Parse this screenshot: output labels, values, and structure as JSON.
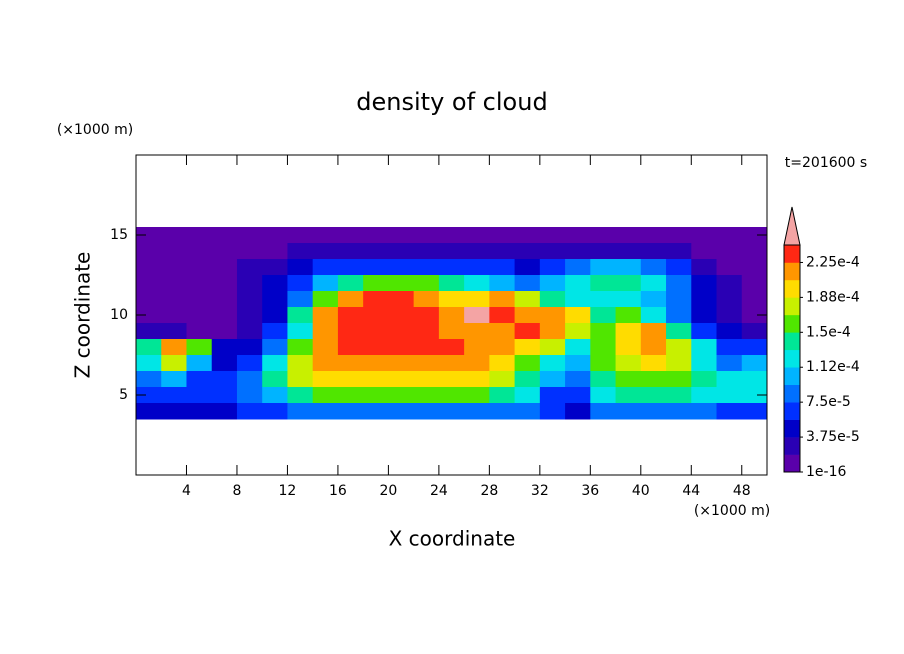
{
  "chart_data": {
    "type": "contour",
    "title": "density of cloud",
    "x_label": "X coordinate",
    "y_label": "Z coordinate",
    "x_unit": "(×1000 m)",
    "y_unit": "(×1000 m)",
    "annotation": "t=201600 s",
    "xlim": [
      0,
      50
    ],
    "xticks": [
      4,
      8,
      12,
      16,
      20,
      24,
      28,
      32,
      36,
      40,
      44,
      48
    ],
    "ylim": [
      0,
      20
    ],
    "yticks": [
      5,
      10,
      15
    ],
    "levels": [
      1e-16,
      1.875e-05,
      3.75e-05,
      5.625e-05,
      7.5e-05,
      9.375e-05,
      0.0001125,
      0.00013125,
      0.00015,
      0.00016875,
      0.0001875,
      0.00020625,
      0.000225,
      0.00024375
    ],
    "level_ticks": [
      {
        "value": 1e-16,
        "label": "1e-16"
      },
      {
        "value": 3.75e-05,
        "label": "3.75e-5"
      },
      {
        "value": 7.5e-05,
        "label": "7.5e-5"
      },
      {
        "value": 0.0001125,
        "label": "1.12e-4"
      },
      {
        "value": 0.00015,
        "label": "1.5e-4"
      },
      {
        "value": 0.0001875,
        "label": "1.88e-4"
      },
      {
        "value": 0.000225,
        "label": "2.25e-4"
      }
    ],
    "colors": [
      "#5a00aa",
      "#2a00b4",
      "#0000c8",
      "#0030ff",
      "#0070ff",
      "#00b4ff",
      "#00e6e6",
      "#00e696",
      "#50e600",
      "#c8f000",
      "#ffdc00",
      "#ff9600",
      "#ff2814"
    ],
    "over_color": "#f4a4a4",
    "field": {
      "x": [
        1,
        3,
        5,
        7,
        9,
        11,
        13,
        15,
        17,
        19,
        21,
        23,
        25,
        27,
        29,
        31,
        33,
        35,
        37,
        39,
        41,
        43,
        45,
        47,
        49
      ],
      "y": [
        15,
        14,
        13,
        12,
        11,
        10,
        9,
        8,
        7,
        6,
        5,
        4
      ],
      "values": [
        [
          9e-06,
          9e-06,
          9e-06,
          9e-06,
          9e-06,
          9e-06,
          9e-06,
          9e-06,
          9e-06,
          9e-06,
          9e-06,
          9e-06,
          9e-06,
          9e-06,
          9e-06,
          9e-06,
          9e-06,
          9e-06,
          9e-06,
          9e-06,
          9e-06,
          9e-06,
          9e-06,
          9e-06,
          9e-06
        ],
        [
          9e-06,
          9e-06,
          9e-06,
          9e-06,
          9e-06,
          9e-06,
          2.8e-05,
          2.8e-05,
          2.8e-05,
          2.8e-05,
          2.8e-05,
          2.8e-05,
          2.8e-05,
          2.8e-05,
          2.8e-05,
          2.8e-05,
          2.8e-05,
          2.8e-05,
          2.8e-05,
          2.8e-05,
          2.8e-05,
          2.8e-05,
          9e-06,
          9e-06,
          9e-06
        ],
        [
          9e-06,
          9e-06,
          9e-06,
          9e-06,
          2.8e-05,
          2.8e-05,
          4.7e-05,
          6.6e-05,
          6.6e-05,
          6.6e-05,
          6.6e-05,
          6.6e-05,
          6.6e-05,
          6.6e-05,
          6.6e-05,
          4.7e-05,
          6.6e-05,
          8.4e-05,
          0.000103,
          0.000103,
          8.4e-05,
          6.6e-05,
          2.8e-05,
          9e-06,
          9e-06
        ],
        [
          9e-06,
          9e-06,
          9e-06,
          9e-06,
          2.8e-05,
          4.7e-05,
          6.6e-05,
          0.000103,
          0.000141,
          0.000159,
          0.000159,
          0.000159,
          0.000141,
          0.000122,
          0.000103,
          8.4e-05,
          0.000103,
          0.000122,
          0.000141,
          0.000141,
          0.000122,
          8.4e-05,
          4.7e-05,
          2.8e-05,
          9e-06
        ],
        [
          9e-06,
          9e-06,
          9e-06,
          9e-06,
          2.8e-05,
          4.7e-05,
          8.4e-05,
          0.000159,
          0.000216,
          0.000234,
          0.000234,
          0.000216,
          0.000197,
          0.000197,
          0.000216,
          0.000178,
          0.000141,
          0.000122,
          0.000122,
          0.000122,
          0.000103,
          8.4e-05,
          4.7e-05,
          2.8e-05,
          9e-06
        ],
        [
          9e-06,
          9e-06,
          9e-06,
          9e-06,
          2.8e-05,
          4.7e-05,
          0.000141,
          0.000216,
          0.000234,
          0.000234,
          0.000234,
          0.000234,
          0.000216,
          0.00025,
          0.000234,
          0.000216,
          0.000216,
          0.000197,
          0.000141,
          0.000159,
          0.000122,
          8.4e-05,
          4.7e-05,
          2.8e-05,
          9e-06
        ],
        [
          2.8e-05,
          2.8e-05,
          9e-06,
          9e-06,
          2.8e-05,
          6.6e-05,
          0.000122,
          0.000216,
          0.000234,
          0.000234,
          0.000234,
          0.000234,
          0.000216,
          0.000216,
          0.000216,
          0.000234,
          0.000216,
          0.000178,
          0.000159,
          0.000197,
          0.000216,
          0.000141,
          6.6e-05,
          4.7e-05,
          2.8e-05
        ],
        [
          0.000141,
          0.000216,
          0.000159,
          4.7e-05,
          4.7e-05,
          8.4e-05,
          0.000159,
          0.000216,
          0.000234,
          0.000234,
          0.000234,
          0.000234,
          0.000234,
          0.000216,
          0.000216,
          0.000197,
          0.000178,
          0.000122,
          0.000159,
          0.000197,
          0.000216,
          0.000178,
          0.000122,
          6.6e-05,
          6.6e-05
        ],
        [
          0.000122,
          0.000178,
          0.000103,
          4.7e-05,
          6.6e-05,
          0.000122,
          0.000178,
          0.000216,
          0.000216,
          0.000216,
          0.000216,
          0.000216,
          0.000216,
          0.000216,
          0.000197,
          0.000159,
          0.000122,
          0.000103,
          0.000159,
          0.000178,
          0.000197,
          0.000178,
          0.000122,
          8.4e-05,
          0.000103
        ],
        [
          8.4e-05,
          0.000103,
          6.6e-05,
          6.6e-05,
          8.4e-05,
          0.000141,
          0.000178,
          0.000197,
          0.000197,
          0.000197,
          0.000197,
          0.000197,
          0.000197,
          0.000197,
          0.000178,
          0.000141,
          0.000103,
          8.4e-05,
          0.000141,
          0.000159,
          0.000159,
          0.000159,
          0.000141,
          0.000122,
          0.000122
        ],
        [
          6.6e-05,
          6.6e-05,
          6.6e-05,
          6.6e-05,
          8.4e-05,
          0.000103,
          0.000141,
          0.000159,
          0.000159,
          0.000159,
          0.000159,
          0.000159,
          0.000159,
          0.000159,
          0.000141,
          0.000122,
          6.6e-05,
          6.6e-05,
          0.000122,
          0.000141,
          0.000141,
          0.000141,
          0.000122,
          0.000122,
          0.000122
        ],
        [
          4.7e-05,
          4.7e-05,
          4.7e-05,
          4.7e-05,
          6.6e-05,
          6.6e-05,
          8.4e-05,
          8.4e-05,
          8.4e-05,
          8.4e-05,
          8.4e-05,
          8.4e-05,
          8.4e-05,
          8.4e-05,
          8.4e-05,
          8.4e-05,
          6.6e-05,
          4.7e-05,
          8.4e-05,
          8.4e-05,
          8.4e-05,
          8.4e-05,
          8.4e-05,
          6.6e-05,
          6.6e-05
        ]
      ]
    }
  }
}
